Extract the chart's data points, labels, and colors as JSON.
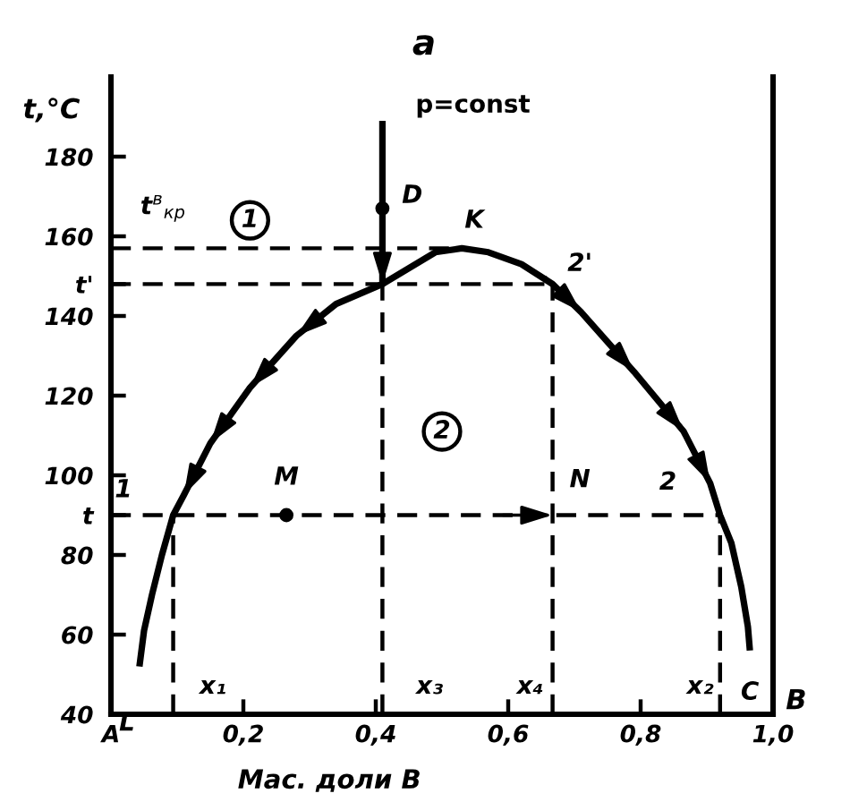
{
  "chart_data": {
    "type": "line",
    "title": "а",
    "subtitle": "p=const",
    "xlabel": "Мас. доли В",
    "ylabel": "t,°C",
    "xlim": [
      0,
      1
    ],
    "ylim": [
      40,
      200
    ],
    "xticks": [
      {
        "value": 0,
        "label": "A"
      },
      {
        "value": 0.2,
        "label": "0,2"
      },
      {
        "value": 0.4,
        "label": "0,4"
      },
      {
        "value": 0.6,
        "label": "0,6"
      },
      {
        "value": 0.8,
        "label": "0,8"
      },
      {
        "value": 1,
        "label": "1,0"
      }
    ],
    "yticks": [
      40,
      60,
      80,
      {
        "value": 90,
        "label": "t"
      },
      100,
      120,
      140,
      {
        "value": 148,
        "label": "t'"
      },
      160,
      180
    ],
    "grid": false,
    "series": [
      {
        "color": "#000000",
        "line_style": "solid",
        "x": [
          0.043,
          0.05,
          0.062,
          0.077,
          0.094,
          0.11,
          0.15,
          0.21,
          0.28,
          0.34,
          0.41,
          0.45,
          0.49,
          0.53,
          0.57,
          0.62,
          0.667,
          0.71,
          0.79,
          0.865,
          0.905,
          0.92,
          0.937,
          0.952,
          0.962,
          0.965
        ],
        "values": [
          52,
          61,
          70,
          80,
          90,
          95,
          108,
          122,
          135,
          143,
          148,
          152,
          156,
          157,
          156,
          153,
          148,
          141,
          126,
          111,
          98,
          90,
          83,
          72,
          62,
          56
        ]
      },
      {
        "color": "#000000",
        "line_style": "dashed",
        "x": [
          0,
          0.53
        ],
        "values": [
          157,
          157
        ]
      },
      {
        "color": "#000000",
        "line_style": "dashed",
        "x": [
          0,
          0.667
        ],
        "values": [
          148,
          148
        ]
      },
      {
        "color": "#000000",
        "line_style": "dashed",
        "x": [
          0,
          0.265,
          0.667,
          0.92
        ],
        "values": [
          90,
          90,
          90,
          90
        ]
      },
      {
        "color": "#000000",
        "line_style": "dashed",
        "x": [
          0.094,
          0.094
        ],
        "values": [
          40,
          90
        ]
      },
      {
        "color": "#000000",
        "line_style": "dashed",
        "x": [
          0.41,
          0.41
        ],
        "values": [
          40,
          148
        ]
      },
      {
        "color": "#000000",
        "line_style": "dashed",
        "x": [
          0.667,
          0.667
        ],
        "values": [
          40,
          148
        ]
      },
      {
        "color": "#000000",
        "line_style": "dashed",
        "x": [
          0.92,
          0.92
        ],
        "values": [
          40,
          90
        ]
      },
      {
        "color": "#000000",
        "line_style": "solid",
        "x": [
          0.41,
          0.41
        ],
        "values": [
          189,
          148
        ]
      },
      {
        "type": "scatter",
        "color": "#000000",
        "marker": "circle",
        "x": [
          0.41,
          0.265
        ],
        "values": [
          167,
          90
        ]
      }
    ],
    "annotations": [
      {
        "text": "K",
        "x": 0.53,
        "y": 157
      },
      {
        "text": "D",
        "x": 0.41,
        "y": 167
      },
      {
        "text": "M",
        "x": 0.265,
        "y": 90
      },
      {
        "text": "N",
        "x": 0.667,
        "y": 90
      },
      {
        "text": "1",
        "x": 0.094,
        "y": 90
      },
      {
        "text": "2",
        "x": 0.92,
        "y": 90
      },
      {
        "text": "2'",
        "x": 0.667,
        "y": 148
      },
      {
        "text": "L",
        "x": 0.043,
        "y": 52
      },
      {
        "text": "C",
        "x": 0.965,
        "y": 56
      },
      {
        "text": "x₁",
        "x": 0.094,
        "y": 40
      },
      {
        "text": "x₃",
        "x": 0.41,
        "y": 40
      },
      {
        "text": "x₄",
        "x": 0.667,
        "y": 40
      },
      {
        "text": "x₂",
        "x": 0.92,
        "y": 40
      },
      "B",
      {
        "text": "t$^{в}$$_{кр}$",
        "x": 0,
        "y": 157
      },
      {
        "text": "1",
        "x": 0.21,
        "y": 164
      },
      {
        "text": "2",
        "x": 0.5,
        "y": 111
      }
    ]
  }
}
